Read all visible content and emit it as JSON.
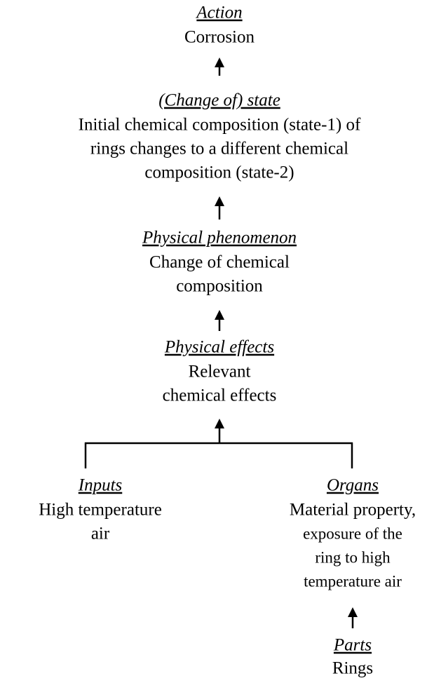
{
  "nodes": [
    {
      "heading": "Action",
      "lines": [
        "Corrosion"
      ]
    },
    {
      "heading": "(Change of) state",
      "lines": [
        "Initial chemical composition (state-1) of",
        "rings changes to a different chemical",
        "composition (state-2)"
      ]
    },
    {
      "heading": "Physical phenomenon",
      "lines": [
        "Change of chemical",
        "composition"
      ]
    },
    {
      "heading": "Physical effects",
      "lines": [
        "Relevant",
        "chemical effects"
      ]
    },
    {
      "heading": "Inputs",
      "lines": [
        "High temperature",
        "air"
      ]
    },
    {
      "heading": "Organs",
      "lines": [
        "Material property,",
        "exposure of the",
        "ring to high",
        "temperature air"
      ]
    },
    {
      "heading": "Parts",
      "lines": [
        "Rings"
      ]
    }
  ]
}
